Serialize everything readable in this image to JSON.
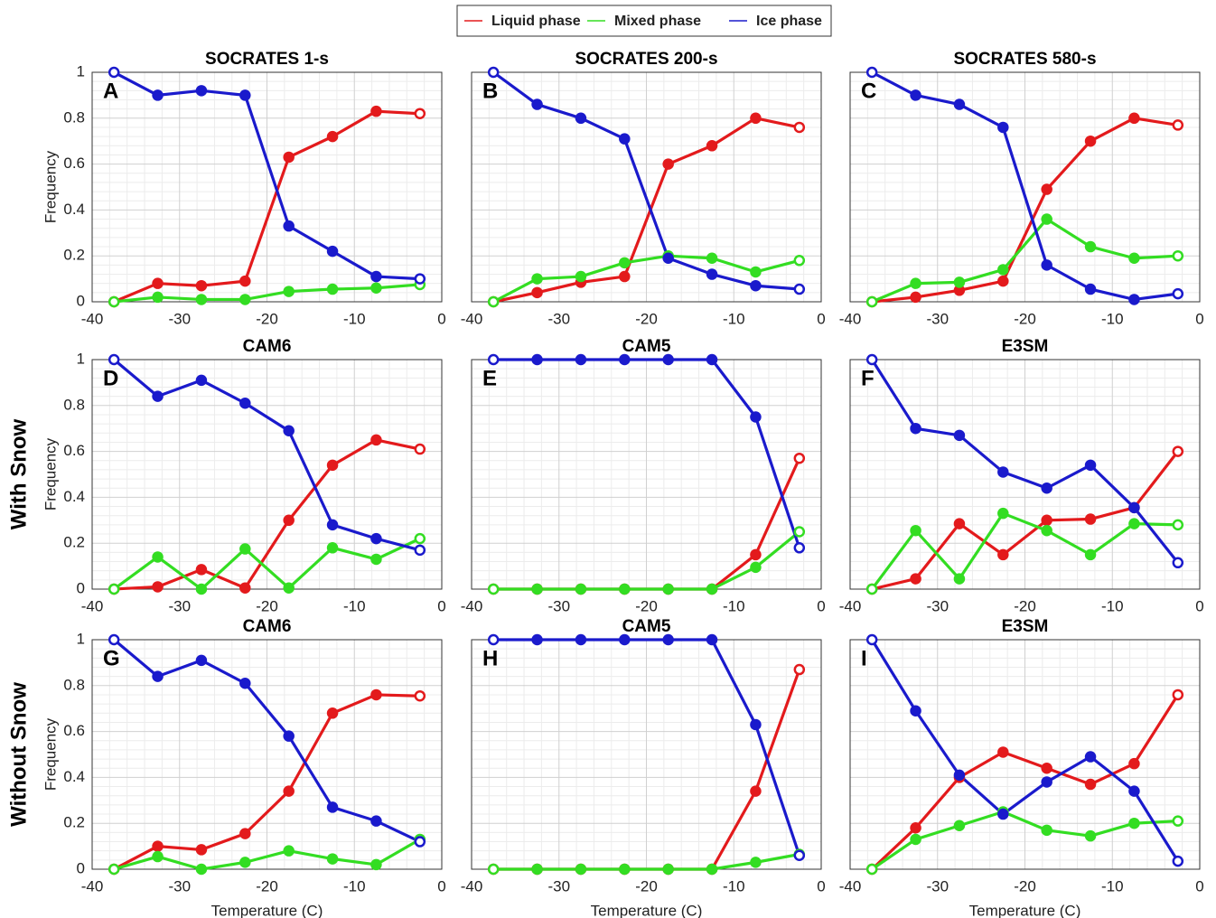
{
  "chart_data": [
    {
      "type": "line",
      "title": "SOCRATES 1-s",
      "panel_label": "A",
      "ylabel": "Frequency",
      "x": [
        -37.5,
        -32.5,
        -27.5,
        -22.5,
        -17.5,
        -12.5,
        -7.5,
        -2.5
      ],
      "xlim": [
        -40,
        0
      ],
      "xticks": [
        -40,
        -30,
        -20,
        -10,
        0
      ],
      "ylim": [
        0,
        1
      ],
      "yticks": [
        0,
        0.2,
        0.4,
        0.6,
        0.8,
        1
      ],
      "grid": true,
      "minor_grid": true,
      "series": [
        {
          "name": "Liquid phase",
          "color": "#e31a1c",
          "values": [
            0,
            0.08,
            0.07,
            0.09,
            0.63,
            0.72,
            0.83,
            0.82
          ]
        },
        {
          "name": "Mixed phase",
          "color": "#33dd22",
          "values": [
            0,
            0.02,
            0.01,
            0.01,
            0.045,
            0.055,
            0.06,
            0.075
          ]
        },
        {
          "name": "Ice phase",
          "color": "#1a1acc",
          "values": [
            1,
            0.9,
            0.92,
            0.9,
            0.33,
            0.22,
            0.11,
            0.1
          ]
        }
      ]
    },
    {
      "type": "line",
      "title": "SOCRATES 200-s",
      "panel_label": "B",
      "x": [
        -37.5,
        -32.5,
        -27.5,
        -22.5,
        -17.5,
        -12.5,
        -7.5,
        -2.5
      ],
      "xlim": [
        -40,
        0
      ],
      "xticks": [
        -40,
        -30,
        -20,
        -10,
        0
      ],
      "ylim": [
        0,
        1
      ],
      "yticks": [
        0,
        0.2,
        0.4,
        0.6,
        0.8,
        1
      ],
      "grid": true,
      "minor_grid": true,
      "series": [
        {
          "name": "Liquid phase",
          "color": "#e31a1c",
          "values": [
            0,
            0.04,
            0.085,
            0.11,
            0.6,
            0.68,
            0.8,
            0.76
          ]
        },
        {
          "name": "Mixed phase",
          "color": "#33dd22",
          "values": [
            0,
            0.1,
            0.11,
            0.17,
            0.2,
            0.19,
            0.13,
            0.18
          ]
        },
        {
          "name": "Ice phase",
          "color": "#1a1acc",
          "values": [
            1,
            0.86,
            0.8,
            0.71,
            0.19,
            0.12,
            0.07,
            0.055
          ]
        }
      ]
    },
    {
      "type": "line",
      "title": "SOCRATES 580-s",
      "panel_label": "C",
      "x": [
        -37.5,
        -32.5,
        -27.5,
        -22.5,
        -17.5,
        -12.5,
        -7.5,
        -2.5
      ],
      "xlim": [
        -40,
        0
      ],
      "xticks": [
        -40,
        -30,
        -20,
        -10,
        0
      ],
      "ylim": [
        0,
        1
      ],
      "yticks": [
        0,
        0.2,
        0.4,
        0.6,
        0.8,
        1
      ],
      "grid": true,
      "minor_grid": true,
      "series": [
        {
          "name": "Liquid phase",
          "color": "#e31a1c",
          "values": [
            0,
            0.02,
            0.05,
            0.09,
            0.49,
            0.7,
            0.8,
            0.77
          ]
        },
        {
          "name": "Mixed phase",
          "color": "#33dd22",
          "values": [
            0,
            0.08,
            0.085,
            0.14,
            0.36,
            0.24,
            0.19,
            0.2
          ]
        },
        {
          "name": "Ice phase",
          "color": "#1a1acc",
          "values": [
            1,
            0.9,
            0.86,
            0.76,
            0.16,
            0.055,
            0.01,
            0.035
          ]
        }
      ]
    },
    {
      "type": "line",
      "title": "CAM6",
      "panel_label": "D",
      "ylabel": "Frequency",
      "row_label": "With Snow",
      "x": [
        -37.5,
        -32.5,
        -27.5,
        -22.5,
        -17.5,
        -12.5,
        -7.5,
        -2.5
      ],
      "xlim": [
        -40,
        0
      ],
      "xticks": [
        -40,
        -30,
        -20,
        -10,
        0
      ],
      "ylim": [
        0,
        1
      ],
      "yticks": [
        0,
        0.2,
        0.4,
        0.6,
        0.8,
        1
      ],
      "grid": true,
      "minor_grid": true,
      "series": [
        {
          "name": "Liquid phase",
          "color": "#e31a1c",
          "values": [
            0,
            0.01,
            0.085,
            0.005,
            0.3,
            0.54,
            0.65,
            0.61
          ]
        },
        {
          "name": "Mixed phase",
          "color": "#33dd22",
          "values": [
            0,
            0.14,
            0,
            0.175,
            0.005,
            0.18,
            0.13,
            0.22
          ]
        },
        {
          "name": "Ice phase",
          "color": "#1a1acc",
          "values": [
            1,
            0.84,
            0.91,
            0.81,
            0.69,
            0.28,
            0.22,
            0.17
          ]
        }
      ]
    },
    {
      "type": "line",
      "title": "CAM5",
      "panel_label": "E",
      "x": [
        -37.5,
        -32.5,
        -27.5,
        -22.5,
        -17.5,
        -12.5,
        -7.5,
        -2.5
      ],
      "xlim": [
        -40,
        0
      ],
      "xticks": [
        -40,
        -30,
        -20,
        -10,
        0
      ],
      "ylim": [
        0,
        1
      ],
      "yticks": [
        0,
        0.2,
        0.4,
        0.6,
        0.8,
        1
      ],
      "grid": true,
      "minor_grid": true,
      "series": [
        {
          "name": "Liquid phase",
          "color": "#e31a1c",
          "values": [
            0,
            0,
            0,
            0,
            0,
            0,
            0.15,
            0.57
          ]
        },
        {
          "name": "Mixed phase",
          "color": "#33dd22",
          "values": [
            0,
            0,
            0,
            0,
            0,
            0,
            0.095,
            0.25
          ]
        },
        {
          "name": "Ice phase",
          "color": "#1a1acc",
          "values": [
            1,
            1,
            1,
            1,
            1,
            1,
            0.75,
            0.18
          ]
        }
      ]
    },
    {
      "type": "line",
      "title": "E3SM",
      "panel_label": "F",
      "x": [
        -37.5,
        -32.5,
        -27.5,
        -22.5,
        -17.5,
        -12.5,
        -7.5,
        -2.5
      ],
      "xlim": [
        -40,
        0
      ],
      "xticks": [
        -40,
        -30,
        -20,
        -10,
        0
      ],
      "ylim": [
        0,
        1
      ],
      "yticks": [
        0,
        0.2,
        0.4,
        0.6,
        0.8,
        1
      ],
      "grid": true,
      "minor_grid": true,
      "series": [
        {
          "name": "Liquid phase",
          "color": "#e31a1c",
          "values": [
            0,
            0.045,
            0.285,
            0.15,
            0.3,
            0.305,
            0.355,
            0.6
          ]
        },
        {
          "name": "Mixed phase",
          "color": "#33dd22",
          "values": [
            0,
            0.255,
            0.045,
            0.33,
            0.255,
            0.15,
            0.285,
            0.28
          ]
        },
        {
          "name": "Ice phase",
          "color": "#1a1acc",
          "values": [
            1,
            0.7,
            0.67,
            0.51,
            0.44,
            0.54,
            0.355,
            0.115
          ]
        }
      ]
    },
    {
      "type": "line",
      "title": "CAM6",
      "panel_label": "G",
      "ylabel": "Frequency",
      "row_label": "Without Snow",
      "xlabel": "Temperature (C)",
      "x": [
        -37.5,
        -32.5,
        -27.5,
        -22.5,
        -17.5,
        -12.5,
        -7.5,
        -2.5
      ],
      "xlim": [
        -40,
        0
      ],
      "xticks": [
        -40,
        -30,
        -20,
        -10,
        0
      ],
      "ylim": [
        0,
        1
      ],
      "yticks": [
        0,
        0.2,
        0.4,
        0.6,
        0.8,
        1
      ],
      "grid": true,
      "minor_grid": true,
      "series": [
        {
          "name": "Liquid phase",
          "color": "#e31a1c",
          "values": [
            0,
            0.1,
            0.085,
            0.155,
            0.34,
            0.68,
            0.76,
            0.755
          ]
        },
        {
          "name": "Mixed phase",
          "color": "#33dd22",
          "values": [
            0,
            0.055,
            0,
            0.03,
            0.08,
            0.045,
            0.02,
            0.13
          ]
        },
        {
          "name": "Ice phase",
          "color": "#1a1acc",
          "values": [
            1,
            0.84,
            0.91,
            0.81,
            0.58,
            0.27,
            0.21,
            0.12
          ]
        }
      ]
    },
    {
      "type": "line",
      "title": "CAM5",
      "panel_label": "H",
      "xlabel": "Temperature (C)",
      "x": [
        -37.5,
        -32.5,
        -27.5,
        -22.5,
        -17.5,
        -12.5,
        -7.5,
        -2.5
      ],
      "xlim": [
        -40,
        0
      ],
      "xticks": [
        -40,
        -30,
        -20,
        -10,
        0
      ],
      "ylim": [
        0,
        1
      ],
      "yticks": [
        0,
        0.2,
        0.4,
        0.6,
        0.8,
        1
      ],
      "grid": true,
      "minor_grid": true,
      "series": [
        {
          "name": "Liquid phase",
          "color": "#e31a1c",
          "values": [
            0,
            0,
            0,
            0,
            0,
            0,
            0.34,
            0.87
          ]
        },
        {
          "name": "Mixed phase",
          "color": "#33dd22",
          "values": [
            0,
            0,
            0,
            0,
            0,
            0,
            0.03,
            0.065
          ]
        },
        {
          "name": "Ice phase",
          "color": "#1a1acc",
          "values": [
            1,
            1,
            1,
            1,
            1,
            1,
            0.63,
            0.06
          ]
        }
      ]
    },
    {
      "type": "line",
      "title": "E3SM",
      "panel_label": "I",
      "xlabel": "Temperature (C)",
      "x": [
        -37.5,
        -32.5,
        -27.5,
        -22.5,
        -17.5,
        -12.5,
        -7.5,
        -2.5
      ],
      "xlim": [
        -40,
        0
      ],
      "xticks": [
        -40,
        -30,
        -20,
        -10,
        0
      ],
      "ylim": [
        0,
        1
      ],
      "yticks": [
        0,
        0.2,
        0.4,
        0.6,
        0.8,
        1
      ],
      "grid": true,
      "minor_grid": true,
      "series": [
        {
          "name": "Liquid phase",
          "color": "#e31a1c",
          "values": [
            0,
            0.18,
            0.4,
            0.51,
            0.44,
            0.37,
            0.46,
            0.76
          ]
        },
        {
          "name": "Mixed phase",
          "color": "#33dd22",
          "values": [
            0,
            0.13,
            0.19,
            0.25,
            0.17,
            0.145,
            0.2,
            0.21
          ]
        },
        {
          "name": "Ice phase",
          "color": "#1a1acc",
          "values": [
            1,
            0.69,
            0.41,
            0.24,
            0.38,
            0.49,
            0.34,
            0.035
          ]
        }
      ]
    }
  ]
}
